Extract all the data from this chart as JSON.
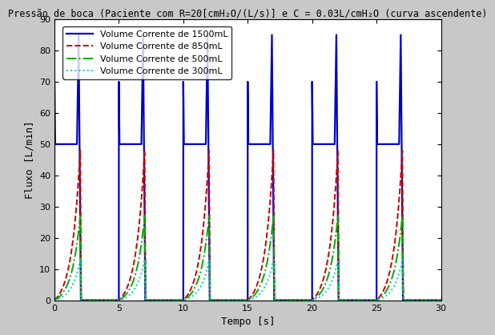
{
  "title": "Pressão de boca (Paciente com R=20[cmH₂O/(L/s)] e C = 0.03L/cmH₂O (curva ascendente)",
  "xlabel": "Tempo [s]",
  "ylabel": "Fluxo [L/min]",
  "xlim": [
    0,
    30
  ],
  "ylim": [
    0,
    90
  ],
  "yticks": [
    0,
    10,
    20,
    30,
    40,
    50,
    60,
    70,
    80,
    90
  ],
  "xticks": [
    0,
    5,
    10,
    15,
    20,
    25,
    30
  ],
  "background_color": "#c8c8c8",
  "plot_background": "#ffffff",
  "lines": [
    {
      "label": "Volume Corrente de 1500mL",
      "color": "#0000cc",
      "linestyle": "-",
      "linewidth": 1.6,
      "peak": 85,
      "plateau": 50
    },
    {
      "label": "Volume Corrente de 850mL",
      "color": "#cc0000",
      "linestyle": "--",
      "linewidth": 1.4,
      "peak": 48
    },
    {
      "label": "Volume Corrente de 500mL",
      "color": "#00aa00",
      "linestyle": "-.",
      "linewidth": 1.4,
      "peak": 27
    },
    {
      "label": "Volume Corrente de 300mL",
      "color": "#00cccc",
      "linestyle": ":",
      "linewidth": 1.4,
      "peak": 13
    }
  ],
  "cycle_period": 5.0,
  "n_cycles": 6,
  "inhal_duration": 2.0,
  "exhal_duration": 3.0,
  "title_fontsize": 8.5,
  "label_fontsize": 9,
  "tick_fontsize": 8,
  "legend_fontsize": 8
}
